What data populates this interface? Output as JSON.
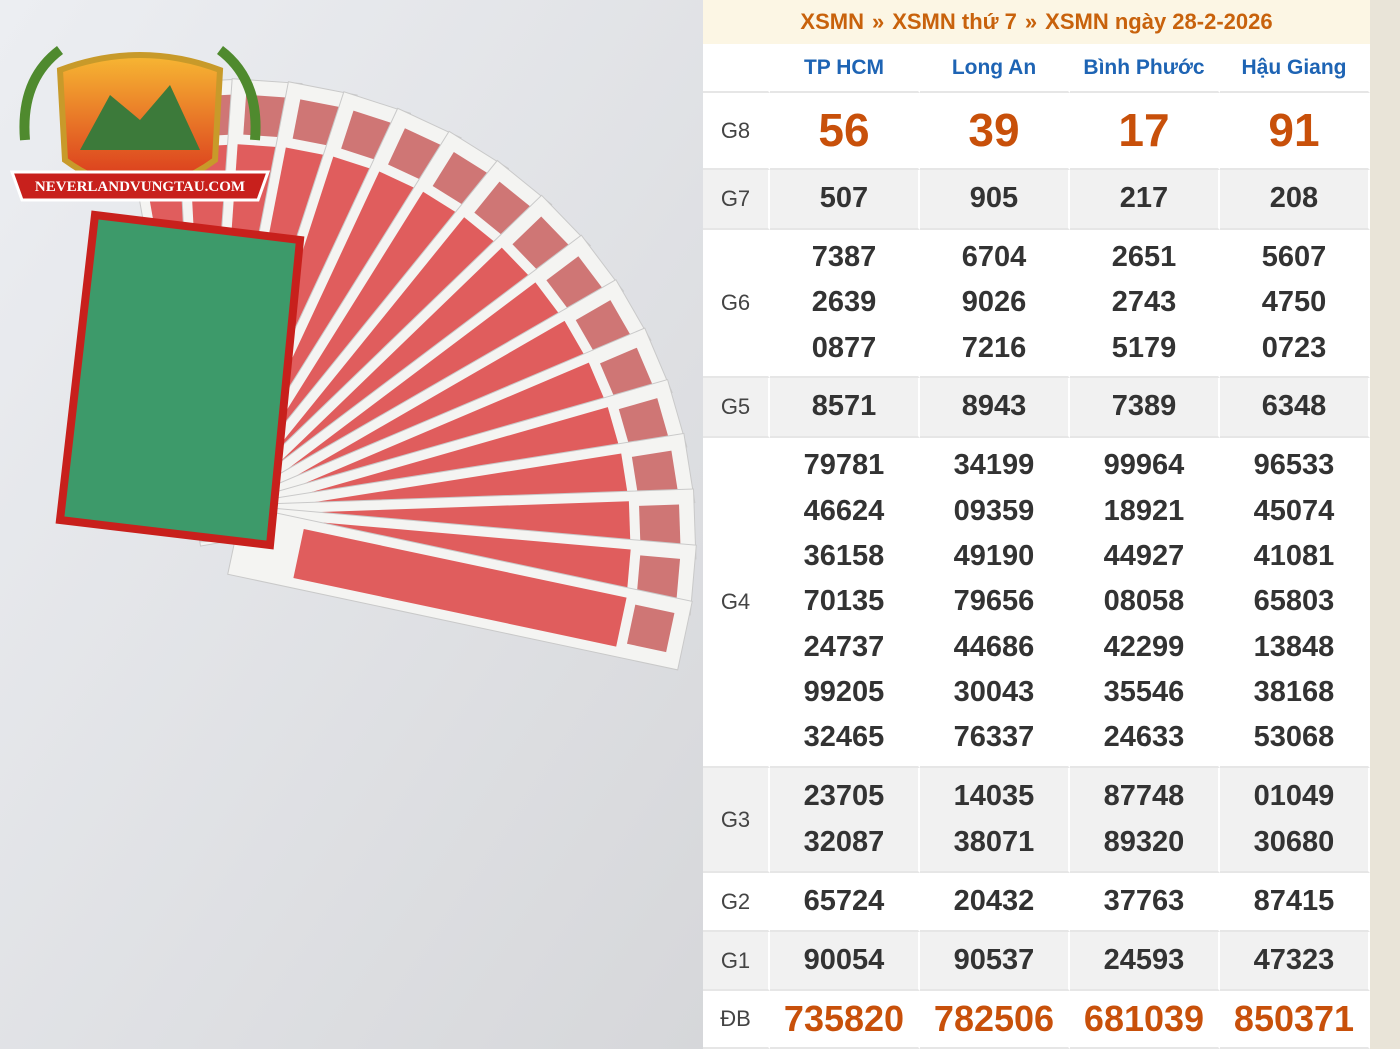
{
  "logo": {
    "text": "NEVERLANDVUNGTAU.COM"
  },
  "header": {
    "links": [
      "XSMN",
      "XSMN thứ 7",
      "XSMN ngày 28-2-2026"
    ],
    "separator": "»"
  },
  "table": {
    "columns": [
      "TP HCM",
      "Long An",
      "Bình Phước",
      "Hậu Giang"
    ],
    "rows": [
      {
        "label": "G8",
        "values": [
          [
            "56"
          ],
          [
            "39"
          ],
          [
            "17"
          ],
          [
            "91"
          ]
        ]
      },
      {
        "label": "G7",
        "values": [
          [
            "507"
          ],
          [
            "905"
          ],
          [
            "217"
          ],
          [
            "208"
          ]
        ]
      },
      {
        "label": "G6",
        "values": [
          [
            "7387",
            "2639",
            "0877"
          ],
          [
            "6704",
            "9026",
            "7216"
          ],
          [
            "2651",
            "2743",
            "5179"
          ],
          [
            "5607",
            "4750",
            "0723"
          ]
        ]
      },
      {
        "label": "G5",
        "values": [
          [
            "8571"
          ],
          [
            "8943"
          ],
          [
            "7389"
          ],
          [
            "6348"
          ]
        ]
      },
      {
        "label": "G4",
        "values": [
          [
            "79781",
            "46624",
            "36158",
            "70135",
            "24737",
            "99205",
            "32465"
          ],
          [
            "34199",
            "09359",
            "49190",
            "79656",
            "44686",
            "30043",
            "76337"
          ],
          [
            "99964",
            "18921",
            "44927",
            "08058",
            "42299",
            "35546",
            "24633"
          ],
          [
            "96533",
            "45074",
            "41081",
            "65803",
            "13848",
            "38168",
            "53068"
          ]
        ]
      },
      {
        "label": "G3",
        "values": [
          [
            "23705",
            "32087"
          ],
          [
            "14035",
            "38071"
          ],
          [
            "87748",
            "89320"
          ],
          [
            "01049",
            "30680"
          ]
        ]
      },
      {
        "label": "G2",
        "values": [
          [
            "65724"
          ],
          [
            "20432"
          ],
          [
            "37763"
          ],
          [
            "87415"
          ]
        ]
      },
      {
        "label": "G1",
        "values": [
          [
            "90054"
          ],
          [
            "90537"
          ],
          [
            "24593"
          ],
          [
            "47323"
          ]
        ]
      },
      {
        "label": "ĐB",
        "values": [
          [
            "735820"
          ],
          [
            "782506"
          ],
          [
            "681039"
          ],
          [
            "850371"
          ]
        ]
      }
    ]
  }
}
